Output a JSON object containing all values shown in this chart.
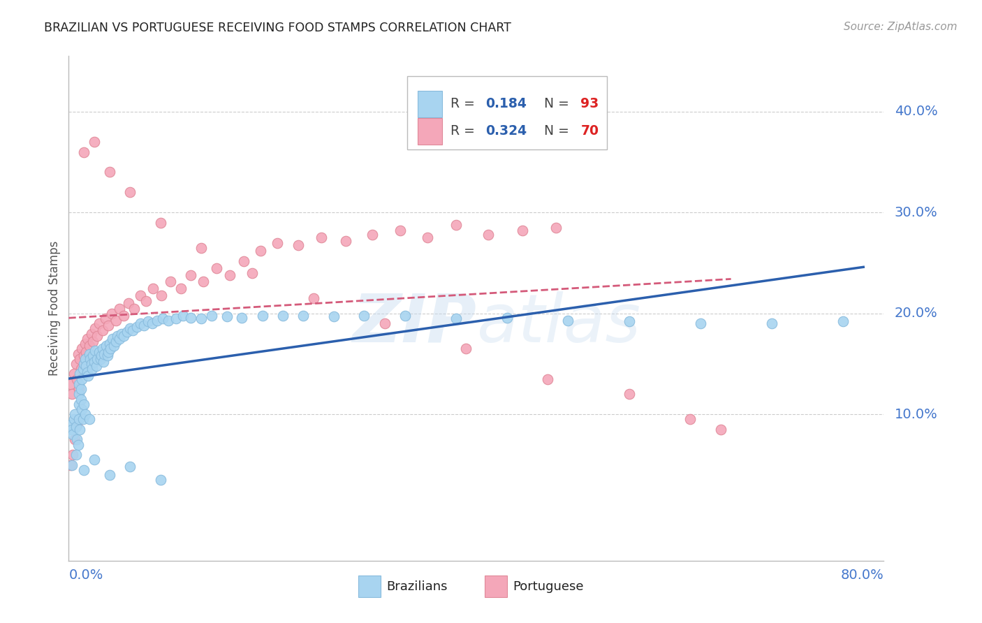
{
  "title": "BRAZILIAN VS PORTUGUESE RECEIVING FOOD STAMPS CORRELATION CHART",
  "source": "Source: ZipAtlas.com",
  "ylabel": "Receiving Food Stamps",
  "ytick_labels": [
    "10.0%",
    "20.0%",
    "30.0%",
    "40.0%"
  ],
  "ytick_values": [
    0.1,
    0.2,
    0.3,
    0.4
  ],
  "xlim": [
    0.0,
    0.8
  ],
  "ylim": [
    -0.045,
    0.455
  ],
  "watermark": "ZIPatlas",
  "brazilian_color": "#a8d4f0",
  "portuguese_color": "#f4a7b9",
  "brazilian_line_color": "#2b5fad",
  "portuguese_line_color": "#d45a7a",
  "grid_color": "#cccccc",
  "brazilian_R": 0.184,
  "brazilian_N": 93,
  "portuguese_R": 0.324,
  "portuguese_N": 70,
  "bx": [
    0.002,
    0.003,
    0.004,
    0.005,
    0.006,
    0.007,
    0.008,
    0.009,
    0.01,
    0.01,
    0.01,
    0.01,
    0.011,
    0.011,
    0.012,
    0.012,
    0.013,
    0.013,
    0.014,
    0.014,
    0.015,
    0.015,
    0.016,
    0.016,
    0.017,
    0.018,
    0.019,
    0.02,
    0.02,
    0.021,
    0.022,
    0.023,
    0.024,
    0.025,
    0.026,
    0.027,
    0.028,
    0.03,
    0.031,
    0.032,
    0.033,
    0.034,
    0.035,
    0.037,
    0.038,
    0.039,
    0.04,
    0.041,
    0.043,
    0.044,
    0.046,
    0.048,
    0.05,
    0.052,
    0.054,
    0.057,
    0.06,
    0.063,
    0.067,
    0.07,
    0.074,
    0.078,
    0.082,
    0.087,
    0.092,
    0.098,
    0.105,
    0.112,
    0.12,
    0.13,
    0.14,
    0.155,
    0.17,
    0.19,
    0.21,
    0.23,
    0.26,
    0.29,
    0.33,
    0.38,
    0.43,
    0.49,
    0.55,
    0.62,
    0.69,
    0.76,
    0.003,
    0.007,
    0.015,
    0.025,
    0.04,
    0.06,
    0.09
  ],
  "by": [
    0.09,
    0.085,
    0.08,
    0.095,
    0.1,
    0.088,
    0.075,
    0.07,
    0.13,
    0.12,
    0.11,
    0.095,
    0.14,
    0.085,
    0.125,
    0.115,
    0.135,
    0.105,
    0.145,
    0.095,
    0.15,
    0.11,
    0.155,
    0.1,
    0.148,
    0.142,
    0.138,
    0.16,
    0.095,
    0.155,
    0.15,
    0.145,
    0.158,
    0.152,
    0.163,
    0.148,
    0.155,
    0.162,
    0.155,
    0.158,
    0.165,
    0.152,
    0.16,
    0.168,
    0.158,
    0.162,
    0.17,
    0.165,
    0.175,
    0.168,
    0.172,
    0.178,
    0.175,
    0.18,
    0.178,
    0.182,
    0.185,
    0.183,
    0.187,
    0.19,
    0.188,
    0.192,
    0.19,
    0.193,
    0.195,
    0.193,
    0.195,
    0.198,
    0.196,
    0.195,
    0.198,
    0.197,
    0.196,
    0.198,
    0.198,
    0.198,
    0.197,
    0.198,
    0.198,
    0.195,
    0.196,
    0.193,
    0.192,
    0.19,
    0.19,
    0.192,
    0.05,
    0.06,
    0.045,
    0.055,
    0.04,
    0.048,
    0.035
  ],
  "px": [
    0.002,
    0.003,
    0.005,
    0.007,
    0.008,
    0.009,
    0.01,
    0.011,
    0.012,
    0.013,
    0.015,
    0.016,
    0.017,
    0.018,
    0.02,
    0.022,
    0.024,
    0.026,
    0.028,
    0.03,
    0.033,
    0.036,
    0.039,
    0.042,
    0.046,
    0.05,
    0.054,
    0.059,
    0.064,
    0.07,
    0.076,
    0.083,
    0.091,
    0.1,
    0.11,
    0.12,
    0.132,
    0.145,
    0.158,
    0.172,
    0.188,
    0.205,
    0.225,
    0.248,
    0.272,
    0.298,
    0.325,
    0.352,
    0.38,
    0.412,
    0.445,
    0.478,
    0.002,
    0.004,
    0.006,
    0.008,
    0.015,
    0.025,
    0.04,
    0.06,
    0.09,
    0.13,
    0.18,
    0.24,
    0.31,
    0.39,
    0.47,
    0.55,
    0.61,
    0.64
  ],
  "py": [
    0.13,
    0.12,
    0.14,
    0.15,
    0.135,
    0.16,
    0.125,
    0.155,
    0.145,
    0.165,
    0.158,
    0.17,
    0.162,
    0.175,
    0.168,
    0.18,
    0.172,
    0.185,
    0.178,
    0.19,
    0.183,
    0.195,
    0.188,
    0.2,
    0.193,
    0.205,
    0.198,
    0.21,
    0.205,
    0.218,
    0.212,
    0.225,
    0.218,
    0.232,
    0.225,
    0.238,
    0.232,
    0.245,
    0.238,
    0.252,
    0.262,
    0.27,
    0.268,
    0.275,
    0.272,
    0.278,
    0.282,
    0.275,
    0.288,
    0.278,
    0.282,
    0.285,
    0.05,
    0.06,
    0.075,
    0.09,
    0.36,
    0.37,
    0.34,
    0.32,
    0.29,
    0.265,
    0.24,
    0.215,
    0.19,
    0.165,
    0.135,
    0.12,
    0.095,
    0.085
  ]
}
